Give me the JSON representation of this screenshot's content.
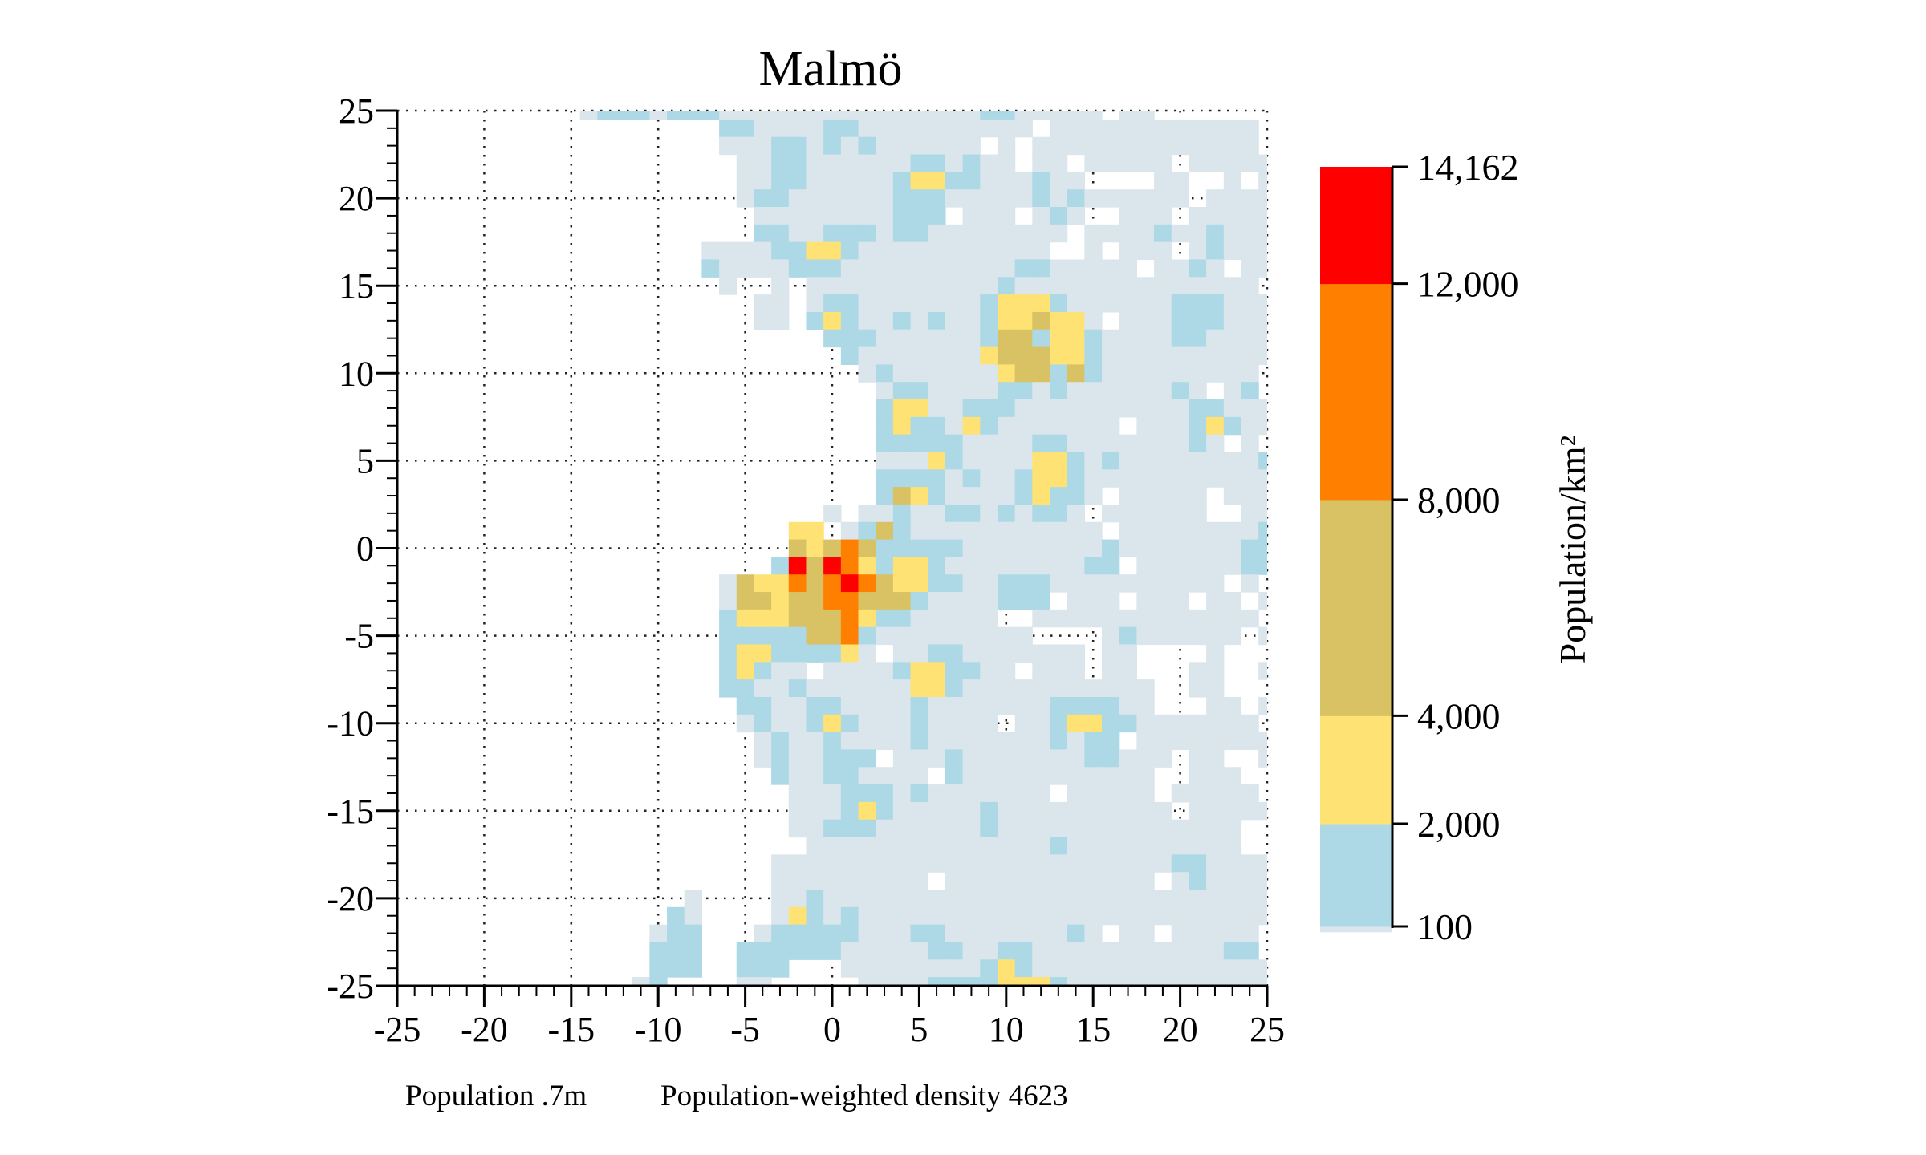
{
  "chart_data": {
    "type": "heatmap",
    "title": "Malmö",
    "xlabel": "",
    "ylabel": "",
    "xlim": [
      -25,
      25
    ],
    "ylim": [
      -25,
      25
    ],
    "grid": true,
    "x_ticks": [
      "-25",
      "-20",
      "-15",
      "-10",
      "-5",
      "0",
      "5",
      "10",
      "15",
      "20",
      "25"
    ],
    "y_ticks": [
      "25",
      "20",
      "15",
      "10",
      "5",
      "0",
      "-5",
      "-10",
      "-15",
      "-20",
      "-25"
    ],
    "x_tick_values": [
      -25,
      -20,
      -15,
      -10,
      -5,
      0,
      5,
      10,
      15,
      20,
      25
    ],
    "y_tick_values": [
      25,
      20,
      15,
      10,
      5,
      0,
      -5,
      -10,
      -15,
      -20,
      -25
    ],
    "cell_x_range": [
      -25,
      25
    ],
    "cell_y_range_top_to_bottom": [
      25,
      -25
    ],
    "levels": [
      {
        "code": "a",
        "range": [
          0,
          100
        ],
        "color": "#dae6ec"
      },
      {
        "code": "b",
        "range": [
          100,
          2000
        ],
        "color": "#add8e6"
      },
      {
        "code": "c",
        "range": [
          2000,
          4000
        ],
        "color": "#ffe274"
      },
      {
        "code": "d",
        "range": [
          4000,
          8000
        ],
        "color": "#d8c263"
      },
      {
        "code": "e",
        "range": [
          8000,
          12000
        ],
        "color": "#ff8000"
      },
      {
        "code": "f",
        "range": [
          12000,
          14162
        ],
        "color": "#ff0000"
      }
    ],
    "no_data_code": ".",
    "rows": [
      "...........abbbabbbaaaaaaaaaaaaaaabbaaaaa.aa",
      "...................bbaaaabbaaaaaaaaaa.aaaaaaaaaaaa",
      "...................aaabbababaaaaaa.a.aaaaaaaaaaaaa",
      "....................aabbaaaaaabbabaa.aa.aaaaa.aaaaa",
      "....................aabbaaaaabccbbaaabaa....aa..a.a",
      "....................abbaaaaaabbbaaaaababaaaaaa.aaaa",
      ".....................aaaaaaaabbb.aaa.aba..aaa.aaaaa",
      ".....................bbaabbbabbaaaaaaaa.aaaabaabaaa",
      "..................aaaabbccbaaaaaaaaaaa..a.aaa.abaaa",
      "..................baaaabbbaaaaaaaaaabbaaaaa.aaba.aa",
      "...................a..a.aaaaaaaaaaabaaaaaaaaaaaaaa",
      ".....................aa.abbaaaaaaabcccbaaaaaabbbaaa",
      ".....................aa.bcbaababaabccdcca.aaabbbaaa",
      ".........................bbbaaaaaabddbccbaaaabbaaaa",
      "..........................baaaaaaacdddccbaaaaaaaaaa",
      "...........................abaaaaaacddbdbaaaaaaaaa.",
      "............................abbaaaabbabaaaaaaba.ab",
      "............................bccaabbbaaaaaaaaaabbaaa",
      "............................bcbbacbaaaaaaa.aaabcbaa",
      "............................bbbbbaaaabbaaaaaaaba.a",
      "............................aaacbaaaaccbabaaaaaaaab",
      "............................bbbbabaabccbaaaaaaaaaaa",
      "............................bdcbaaaabcbba.aaaaa.aaa",
      ".........................a.aabaabbababba.aaaaaa..aa",
      ".......................cc.abdbaaaaaaaaaaa.aaaaaaaab",
      ".......................dcdedbbbbbaaaaaaaabaaaaaaabb",
      "......................bfdfecbccbaaaaaaaabb.aaaaaabb",
      "...................adccedefedccbbaabbbaaaaaaaaaa.a",
      "...................addcddeedddbaaaabbb.aaa.aaa.aa.a",
      "...................bcccdddecbbaaaaa..aaaaaaaaaaaaa",
      "...................bbbbbddebaaaaaaaaa....abaaaaaa.a",
      "...................bccbbbbca.aabbaaaaaaa.aa....a...",
      "...................bcbaa.aaaabccbbaa.aaa.aa...aa..a",
      "...................bbaabaaaaaaccbaaaaaaaaaaa..aa...",
      "....................bbaabbaaaabaaaaaaabbbbaa...aa.a",
      "....................abaabcbaaabaaaa.aabccbbaaaaaaa.",
      ".....................abaabaaaabaaaaaaababb.aaaaaaaa",
      ".....................abaabbb.aaabaaaaaaabbaaa.aa..a",
      "......................baabbaaaa.baaaaaaaaaaa..aaa..",
      ".......................aaabbbabaaaaaaa.aaaaa.aaaaa",
      ".......................aaabcbaaaaabaaaaaaaaaa.aaaaa",
      ".......................aabbbaaaaaabaaaaaaaaaaaaaa.",
      "........................aaaaaaaaaaaaaabaaaaaaaaaa.",
      "......................aaaaaaaaaaaaaaaaaaaaaaabbaaaa",
      "......................aaaaaaaaa.aaaaaaaaaaaa.abaaaa",
      ".................a....aabaaaaaaaaaaaaaaaaaaaaaaaaaa",
      "................ba....acbabaaaaaaaaaaaaaaaaaaaaaaaa",
      "...............abb...abbbbbaaabbaaaaaaaba.aa.aaaaa.",
      "...............bbb..bbbbbbaaaaabbaabbaaaaaaaaaaabb",
      "...............bbb..bbb...aaaaaaaabcbaaaaaaaaaaaaaa",
      "..............ab....aa.....aaaabbbbcccbaaaaaaaaaaaa"
    ],
    "colorbar": {
      "label": "Population/km²",
      "range": [
        0,
        14162
      ],
      "ticks": [
        {
          "value": 14162,
          "label": "14,162"
        },
        {
          "value": 12000,
          "label": "12,000"
        },
        {
          "value": 8000,
          "label": "8,000"
        },
        {
          "value": 4000,
          "label": "4,000"
        },
        {
          "value": 2000,
          "label": "2,000"
        },
        {
          "value": 100,
          "label": "100"
        }
      ]
    }
  },
  "footer": {
    "population": "Population .7m",
    "weighted_density": "Population-weighted density 4623"
  }
}
